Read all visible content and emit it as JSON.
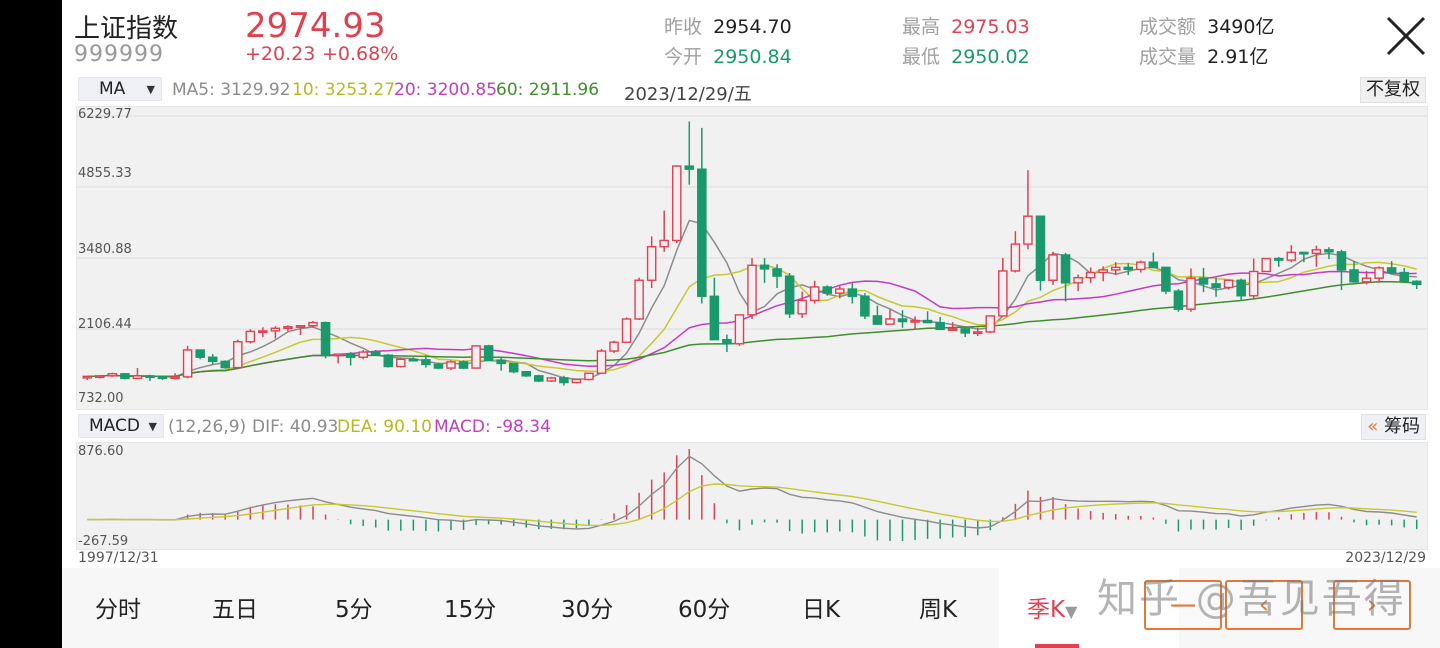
{
  "header": {
    "name": "上证指数",
    "code": "999999",
    "price": "2974.93",
    "change": "+20.23",
    "change_pct": "+0.68%",
    "stats": [
      {
        "label": "昨收",
        "value": "2954.70",
        "color": "#222222"
      },
      {
        "label": "今开",
        "value": "2950.84",
        "color": "#1a9a6c"
      },
      {
        "label": "最高",
        "value": "2975.03",
        "color": "#e0414f"
      },
      {
        "label": "最低",
        "value": "2950.02",
        "color": "#1a9a6c"
      },
      {
        "label": "成交额",
        "value": "3490亿",
        "color": "#222222"
      },
      {
        "label": "成交量",
        "value": "2.91亿",
        "color": "#222222"
      }
    ]
  },
  "ma_bar": {
    "selector": "MA",
    "ma5": "MA5: 3129.92",
    "ma10": "10: 3253.27",
    "ma20": "20: 3200.85",
    "ma60": "60: 2911.96",
    "date": "2023/12/29/五",
    "adjust_button": "不复权"
  },
  "macd_bar": {
    "selector": "MACD",
    "params": "(12,26,9)",
    "dif": "DIF: 40.93",
    "dea": "DEA: 90.10",
    "macd": "MACD: -98.34",
    "chips_button": "筹码",
    "chips_icon": "«"
  },
  "colors": {
    "up": "#e0414f",
    "down": "#1a9a6c",
    "ma5": "#8c8c8c",
    "ma10": "#c8c832",
    "ma20": "#c43bc4",
    "ma60": "#3f8f2f"
  },
  "chart_data": [
    {
      "type": "candlestick",
      "title": "上证指数 季K",
      "period": "quarterly",
      "x_start": "1997/12/31",
      "x_end": "2023/12/29",
      "y_ticks": [
        "6229.77",
        "4855.33",
        "3480.88",
        "2106.44",
        "732.00"
      ],
      "ylim": [
        732.0,
        6229.77
      ],
      "grid": true,
      "series_ohlc": [
        [
          1160,
          1200,
          1120,
          1190
        ],
        [
          1190,
          1210,
          1150,
          1200
        ],
        [
          1200,
          1260,
          1180,
          1240
        ],
        [
          1240,
          1250,
          1130,
          1150
        ],
        [
          1150,
          1350,
          1140,
          1200
        ],
        [
          1200,
          1220,
          1100,
          1180
        ],
        [
          1180,
          1200,
          1120,
          1170
        ],
        [
          1170,
          1250,
          1130,
          1180
        ],
        [
          1180,
          1780,
          1150,
          1700
        ],
        [
          1700,
          1690,
          1520,
          1560
        ],
        [
          1560,
          1620,
          1420,
          1480
        ],
        [
          1480,
          1500,
          1340,
          1360
        ],
        [
          1360,
          1900,
          1350,
          1860
        ],
        [
          1860,
          2100,
          1830,
          2060
        ],
        [
          2060,
          2140,
          1950,
          2070
        ],
        [
          2070,
          2160,
          1920,
          2120
        ],
        [
          2120,
          2180,
          2060,
          2150
        ],
        [
          2150,
          2160,
          1990,
          2170
        ],
        [
          2170,
          2260,
          2130,
          2230
        ],
        [
          2230,
          2250,
          1540,
          1590
        ],
        [
          1590,
          1620,
          1440,
          1620
        ],
        [
          1620,
          1660,
          1400,
          1560
        ],
        [
          1560,
          1700,
          1520,
          1660
        ],
        [
          1660,
          1700,
          1590,
          1600
        ],
        [
          1600,
          1620,
          1360,
          1380
        ],
        [
          1380,
          1550,
          1360,
          1520
        ],
        [
          1520,
          1560,
          1480,
          1510
        ],
        [
          1510,
          1600,
          1360,
          1420
        ],
        [
          1420,
          1460,
          1330,
          1350
        ],
        [
          1350,
          1500,
          1310,
          1470
        ],
        [
          1470,
          1500,
          1330,
          1350
        ],
        [
          1350,
          1790,
          1340,
          1780
        ],
        [
          1780,
          1800,
          1530,
          1500
        ],
        [
          1500,
          1560,
          1300,
          1440
        ],
        [
          1440,
          1450,
          1250,
          1280
        ],
        [
          1280,
          1290,
          1180,
          1200
        ],
        [
          1200,
          1220,
          1080,
          1100
        ],
        [
          1100,
          1180,
          1080,
          1160
        ],
        [
          1160,
          1200,
          1010,
          1070
        ],
        [
          1070,
          1140,
          1050,
          1130
        ],
        [
          1130,
          1260,
          1110,
          1250
        ],
        [
          1250,
          1720,
          1240,
          1680
        ],
        [
          1680,
          1880,
          1640,
          1850
        ],
        [
          1850,
          2330,
          1840,
          2300
        ],
        [
          2300,
          3100,
          2280,
          3050
        ],
        [
          3050,
          3900,
          2900,
          3700
        ],
        [
          3700,
          4400,
          3600,
          3820
        ],
        [
          3820,
          5280,
          3770,
          5260
        ],
        [
          5260,
          6124,
          4900,
          5200
        ],
        [
          5200,
          6000,
          2600,
          2740
        ],
        [
          2740,
          3100,
          2400,
          1900
        ],
        [
          1900,
          2000,
          1660,
          1820
        ],
        [
          1820,
          2300,
          1780,
          2380
        ],
        [
          2380,
          3480,
          2300,
          3340
        ],
        [
          3340,
          3480,
          3000,
          3270
        ],
        [
          3270,
          3360,
          2900,
          3130
        ],
        [
          3130,
          3190,
          2320,
          2400
        ],
        [
          2400,
          2830,
          2320,
          2660
        ],
        [
          2660,
          3040,
          2600,
          2920
        ],
        [
          2920,
          2950,
          2750,
          2800
        ],
        [
          2800,
          2950,
          2700,
          2880
        ],
        [
          2880,
          3000,
          2600,
          2740
        ],
        [
          2740,
          2800,
          2300,
          2360
        ],
        [
          2360,
          2560,
          2200,
          2200
        ],
        [
          2200,
          2480,
          2240,
          2300
        ],
        [
          2300,
          2470,
          2130,
          2250
        ],
        [
          2250,
          2350,
          2100,
          2270
        ],
        [
          2270,
          2450,
          2240,
          2230
        ],
        [
          2230,
          2340,
          2160,
          2100
        ],
        [
          2100,
          2240,
          2070,
          2110
        ],
        [
          2110,
          2140,
          1950,
          2030
        ],
        [
          2030,
          2130,
          1970,
          2050
        ],
        [
          2050,
          2360,
          2030,
          2360
        ],
        [
          2360,
          3480,
          2350,
          3230
        ],
        [
          3230,
          4000,
          3200,
          3750
        ],
        [
          3750,
          5180,
          3650,
          4290
        ],
        [
          4290,
          4300,
          2850,
          3050
        ],
        [
          3050,
          3600,
          2960,
          3540
        ],
        [
          3540,
          3580,
          2640,
          3000
        ],
        [
          3000,
          3160,
          2840,
          3100
        ],
        [
          3100,
          3300,
          3000,
          3200
        ],
        [
          3200,
          3320,
          3030,
          3250
        ],
        [
          3250,
          3400,
          3150,
          3300
        ],
        [
          3300,
          3380,
          3150,
          3260
        ],
        [
          3260,
          3430,
          3200,
          3400
        ],
        [
          3400,
          3587,
          3280,
          3300
        ],
        [
          3300,
          3310,
          2780,
          2840
        ],
        [
          2840,
          2880,
          2440,
          2490
        ],
        [
          2490,
          3280,
          2440,
          3090
        ],
        [
          3090,
          3290,
          2820,
          2980
        ],
        [
          2980,
          3100,
          2730,
          2910
        ],
        [
          2910,
          3060,
          2870,
          3050
        ],
        [
          3050,
          3080,
          2650,
          2750
        ],
        [
          2750,
          3470,
          2700,
          3220
        ],
        [
          3220,
          3400,
          3210,
          3470
        ],
        [
          3470,
          3500,
          3310,
          3440
        ],
        [
          3440,
          3730,
          3400,
          3590
        ],
        [
          3590,
          3590,
          3400,
          3570
        ],
        [
          3570,
          3720,
          3310,
          3640
        ],
        [
          3640,
          3690,
          3460,
          3600
        ],
        [
          3600,
          3640,
          2860,
          3250
        ],
        [
          3250,
          3420,
          3000,
          3020
        ],
        [
          3020,
          3230,
          2970,
          3090
        ],
        [
          3090,
          3320,
          3000,
          3290
        ],
        [
          3290,
          3420,
          3170,
          3200
        ],
        [
          3200,
          3290,
          3000,
          3030
        ],
        [
          3030,
          3050,
          2880,
          2970
        ]
      ],
      "ma_legend": [
        {
          "name": "MA5",
          "value": 3129.92
        },
        {
          "name": "MA10",
          "value": 3253.27
        },
        {
          "name": "MA20",
          "value": 3200.85
        },
        {
          "name": "MA60",
          "value": 2911.96
        }
      ]
    },
    {
      "type": "bar+line",
      "title": "MACD (12,26,9)",
      "y_ticks": [
        "876.60",
        "-267.59"
      ],
      "ylim": [
        -267.59,
        876.6
      ],
      "series": [
        {
          "name": "DIF",
          "last": 40.93
        },
        {
          "name": "DEA",
          "last": 90.1
        },
        {
          "name": "MACD",
          "last": -98.34
        }
      ]
    }
  ],
  "axis": {
    "y_ticks": [
      "6229.77",
      "4855.33",
      "3480.88",
      "2106.44",
      "732.00"
    ],
    "macd_top": "876.60",
    "macd_bottom": "-267.59",
    "date_start": "1997/12/31",
    "date_end": "2023/12/29"
  },
  "tabs": [
    {
      "label": "分时",
      "active": false
    },
    {
      "label": "五日",
      "active": false
    },
    {
      "label": "5分",
      "active": false
    },
    {
      "label": "15分",
      "active": false
    },
    {
      "label": "30分",
      "active": false
    },
    {
      "label": "60分",
      "active": false
    },
    {
      "label": "日K",
      "active": false
    },
    {
      "label": "周K",
      "active": false
    },
    {
      "label": "季K",
      "active": true
    }
  ],
  "nav_buttons": [
    {
      "name": "collapse",
      "glyph": "一"
    },
    {
      "name": "prev",
      "glyph": "‹"
    },
    {
      "name": "next",
      "glyph": "›"
    }
  ],
  "watermark": "知乎 @吾见吾得"
}
